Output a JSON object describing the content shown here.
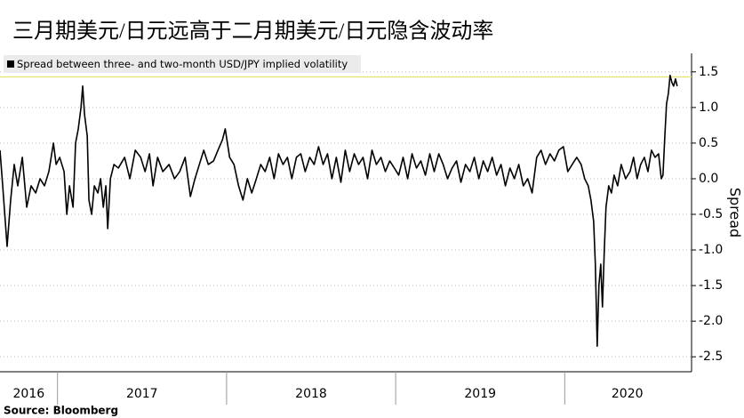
{
  "chart_data": {
    "type": "line",
    "title": "三月期美元/日元远高于二月期美元/日元隐含波动率",
    "ylabel": "Spread",
    "source": "Source: Bloomberg",
    "legend_position": "top-left",
    "grid": true,
    "reference_line": {
      "value": 1.43,
      "color": "#f0e060"
    },
    "xlim": [
      2016.66,
      2020.75
    ],
    "xticks": [
      {
        "value": 2016.83,
        "label": "2016"
      },
      {
        "value": 2017.5,
        "label": "2017"
      },
      {
        "value": 2018.5,
        "label": "2018"
      },
      {
        "value": 2019.5,
        "label": "2019"
      },
      {
        "value": 2020.37,
        "label": "2020"
      }
    ],
    "ylim": [
      -2.71,
      1.76
    ],
    "yticks": [
      {
        "value": 1.5,
        "label": "1.5"
      },
      {
        "value": 1.0,
        "label": "1.0"
      },
      {
        "value": 0.5,
        "label": "0.5"
      },
      {
        "value": 0.0,
        "label": "0.0"
      },
      {
        "value": -0.5,
        "label": "-0.5"
      },
      {
        "value": -1.0,
        "label": "-1.0"
      },
      {
        "value": -1.5,
        "label": "-1.5"
      },
      {
        "value": -2.0,
        "label": "-2.0"
      },
      {
        "value": -2.5,
        "label": "-2.5"
      }
    ],
    "series": [
      {
        "name": "Spread between three- and two-month USD/JPY implied volatility",
        "color": "#000000",
        "x": [
          2016.66,
          2016.676,
          2016.702,
          2016.723,
          2016.744,
          2016.765,
          2016.792,
          2016.818,
          2016.844,
          2016.871,
          2016.897,
          2016.923,
          2016.949,
          2016.976,
          2016.992,
          2017.013,
          2017.039,
          2017.055,
          2017.071,
          2017.092,
          2017.107,
          2017.123,
          2017.139,
          2017.149,
          2017.16,
          2017.176,
          2017.186,
          2017.202,
          2017.218,
          2017.239,
          2017.255,
          2017.271,
          2017.286,
          2017.297,
          2017.313,
          2017.334,
          2017.36,
          2017.397,
          2017.428,
          2017.46,
          2017.492,
          2017.518,
          2017.544,
          2017.565,
          2017.592,
          2017.623,
          2017.66,
          2017.692,
          2017.723,
          2017.755,
          2017.786,
          2017.813,
          2017.839,
          2017.865,
          2017.892,
          2017.923,
          2017.949,
          2017.976,
          2017.992,
          2018.018,
          2018.044,
          2018.071,
          2018.097,
          2018.123,
          2018.149,
          2018.176,
          2018.202,
          2018.228,
          2018.255,
          2018.281,
          2018.307,
          2018.334,
          2018.36,
          2018.386,
          2018.413,
          2018.439,
          2018.465,
          2018.492,
          2018.518,
          2018.544,
          2018.571,
          2018.597,
          2018.623,
          2018.649,
          2018.676,
          2018.702,
          2018.728,
          2018.755,
          2018.781,
          2018.807,
          2018.834,
          2018.86,
          2018.886,
          2018.913,
          2018.939,
          2018.965,
          2018.992,
          2019.018,
          2019.044,
          2019.071,
          2019.097,
          2019.123,
          2019.149,
          2019.176,
          2019.202,
          2019.228,
          2019.255,
          2019.281,
          2019.307,
          2019.334,
          2019.36,
          2019.386,
          2019.413,
          2019.439,
          2019.465,
          2019.492,
          2019.518,
          2019.544,
          2019.571,
          2019.597,
          2019.623,
          2019.649,
          2019.676,
          2019.702,
          2019.728,
          2019.755,
          2019.781,
          2019.807,
          2019.834,
          2019.86,
          2019.886,
          2019.913,
          2019.939,
          2019.965,
          2019.992,
          2020.018,
          2020.044,
          2020.071,
          2020.097,
          2020.118,
          2020.139,
          2020.155,
          2020.171,
          2020.181,
          2020.192,
          2020.202,
          2020.213,
          2020.223,
          2020.234,
          2020.244,
          2020.26,
          2020.276,
          2020.292,
          2020.313,
          2020.334,
          2020.36,
          2020.386,
          2020.407,
          2020.428,
          2020.449,
          2020.471,
          2020.492,
          2020.513,
          2020.534,
          2020.555,
          2020.571,
          2020.581,
          2020.592,
          2020.602,
          2020.613,
          2020.623,
          2020.634,
          2020.644,
          2020.655,
          2020.665
        ],
        "values": [
          0.4,
          -0.1,
          -0.95,
          -0.3,
          0.2,
          -0.1,
          0.3,
          -0.4,
          -0.1,
          -0.2,
          0.0,
          -0.1,
          0.1,
          0.5,
          0.2,
          0.3,
          0.1,
          -0.5,
          -0.1,
          -0.4,
          0.5,
          0.7,
          1.0,
          1.3,
          0.9,
          0.6,
          -0.3,
          -0.5,
          -0.1,
          -0.2,
          0.0,
          -0.4,
          -0.1,
          -0.7,
          0.0,
          0.2,
          0.15,
          0.3,
          0.0,
          0.4,
          0.3,
          0.1,
          0.35,
          -0.1,
          0.3,
          0.1,
          0.2,
          0.0,
          0.1,
          0.3,
          -0.25,
          0.0,
          0.2,
          0.4,
          0.2,
          0.25,
          0.4,
          0.55,
          0.7,
          0.3,
          0.2,
          -0.1,
          -0.3,
          0.0,
          -0.2,
          0.0,
          0.2,
          0.1,
          0.3,
          0.0,
          0.35,
          0.2,
          0.3,
          0.0,
          0.3,
          0.35,
          0.1,
          0.3,
          0.2,
          0.45,
          0.2,
          0.35,
          0.0,
          0.3,
          -0.05,
          0.4,
          0.1,
          0.35,
          0.2,
          0.3,
          0.0,
          0.4,
          0.2,
          0.3,
          0.1,
          0.25,
          0.15,
          0.05,
          0.3,
          0.0,
          0.35,
          0.15,
          0.25,
          0.05,
          0.35,
          0.1,
          0.35,
          0.2,
          0.0,
          0.15,
          0.25,
          -0.05,
          0.2,
          0.1,
          0.3,
          0.0,
          0.25,
          0.1,
          0.3,
          0.05,
          0.2,
          -0.1,
          0.15,
          0.0,
          0.2,
          -0.1,
          0.0,
          -0.2,
          0.3,
          0.4,
          0.2,
          0.35,
          0.25,
          0.4,
          0.45,
          0.1,
          0.2,
          0.3,
          0.2,
          0.0,
          -0.1,
          -0.3,
          -0.6,
          -1.2,
          -2.35,
          -1.5,
          -1.2,
          -1.8,
          -1.0,
          -0.4,
          -0.1,
          -0.2,
          0.05,
          -0.1,
          0.2,
          0.0,
          0.1,
          0.3,
          0.0,
          0.2,
          0.3,
          0.1,
          0.4,
          0.3,
          0.35,
          0.0,
          0.05,
          0.6,
          1.05,
          1.2,
          1.45,
          1.35,
          1.3,
          1.4,
          1.3
        ]
      }
    ]
  }
}
